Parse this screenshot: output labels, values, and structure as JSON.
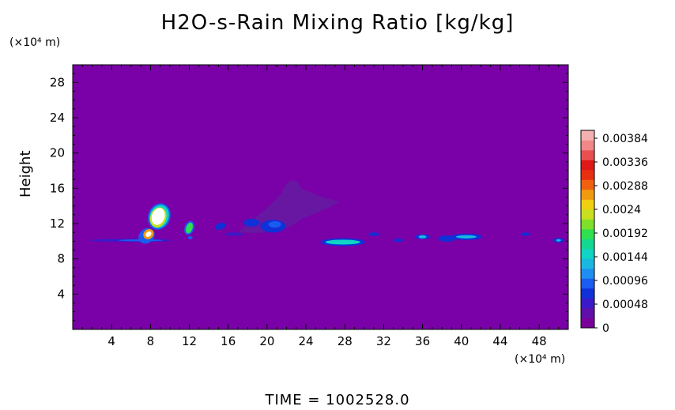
{
  "chart_data": {
    "type": "heatmap",
    "title": "H2O-s-Rain Mixing Ratio [kg/kg]",
    "xlabel": "",
    "ylabel": "Height",
    "x_unit": "(×10⁴ m)",
    "y_unit": "(×10⁴ m)",
    "x_ticks": [
      "4",
      "8",
      "12",
      "16",
      "20",
      "24",
      "28",
      "32",
      "36",
      "40",
      "44",
      "48"
    ],
    "x_tick_values": [
      4,
      8,
      12,
      16,
      20,
      24,
      28,
      32,
      36,
      40,
      44,
      48
    ],
    "y_ticks": [
      "4",
      "8",
      "12",
      "16",
      "20",
      "24",
      "28"
    ],
    "y_tick_values": [
      4,
      8,
      12,
      16,
      20,
      24,
      28
    ],
    "xlim": [
      0,
      51
    ],
    "ylim": [
      0,
      30
    ],
    "colorbar": {
      "labels": [
        "0.00384",
        "0.00336",
        "0.00288",
        "0.0024",
        "0.00192",
        "0.00144",
        "0.00096",
        "0.00048",
        "0"
      ],
      "range": [
        0,
        0.004
      ],
      "colors": [
        "#7a009c",
        "#6010a8",
        "#3a1ac8",
        "#1030d8",
        "#1a5cf0",
        "#1e8ef0",
        "#1ab8e0",
        "#10d4c4",
        "#14d890",
        "#30e050",
        "#7ee028",
        "#c8e020",
        "#f0d010",
        "#f09a10",
        "#f06010",
        "#e83010",
        "#e01818",
        "#e85050",
        "#f08888",
        "#f4b0b0"
      ]
    },
    "features": [
      {
        "x": 8.5,
        "y": 12.5,
        "max_value": 0.004
      },
      {
        "x": 12,
        "y": 11.5,
        "max_value": 0.0018
      },
      {
        "x": 20,
        "y": 11.8,
        "max_value": 0.0006
      },
      {
        "x": 28,
        "y": 10.0,
        "max_value": 0.0012
      },
      {
        "x": 40,
        "y": 10.5,
        "max_value": 0.0009
      }
    ]
  },
  "footer": {
    "time_label": "TIME  =  1002528.0"
  },
  "colors": {
    "background": "#ffffff",
    "field_base": "#7a00a8"
  }
}
